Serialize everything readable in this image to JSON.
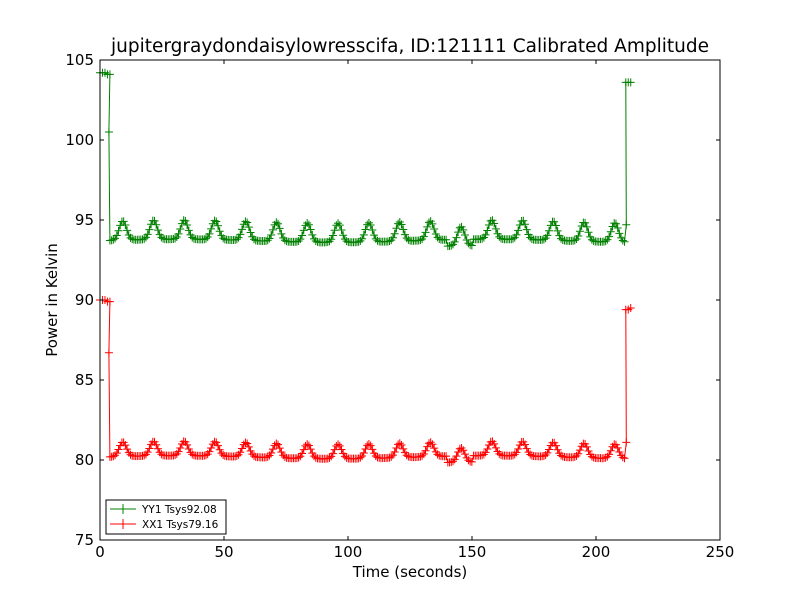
{
  "chart_data": {
    "type": "line",
    "title": "jupitergraydondaisylowresscifa, ID:121111 Calibrated Amplitude",
    "xlabel": "Time (seconds)",
    "ylabel": "Power in Kelvin",
    "xlim": [
      0,
      250
    ],
    "ylim": [
      75,
      105
    ],
    "xticks": [
      "0",
      "50",
      "100",
      "150",
      "200",
      "250"
    ],
    "yticks": [
      "75",
      "80",
      "85",
      "90",
      "95",
      "100",
      "105"
    ],
    "grid": false,
    "legend_position": "lower-left",
    "series": [
      {
        "name": "YY1 Tsys92.08",
        "color": "#008000",
        "marker": "+",
        "baseline": 94.0,
        "oscillation_amplitude": 0.6,
        "oscillation_period": 12.4,
        "start_segment": {
          "t": [
            0,
            1,
            2,
            3,
            4
          ],
          "y": [
            104.2,
            104.2,
            104.2,
            104.1,
            104.1
          ]
        },
        "drop_point": {
          "t": 3.6,
          "y": 100.5
        },
        "end_segment": {
          "t": [
            212,
            213,
            214
          ],
          "y": [
            103.6,
            103.6,
            103.6
          ]
        },
        "rise_point": {
          "t": 212.2,
          "y": 94.7
        },
        "main_range": [
          4,
          211.5
        ]
      },
      {
        "name": "XX1 Tsys79.16",
        "color": "#ff0000",
        "marker": "+",
        "baseline": 80.4,
        "oscillation_amplitude": 0.45,
        "oscillation_period": 12.4,
        "start_segment": {
          "t": [
            0,
            1,
            2,
            3,
            4
          ],
          "y": [
            90.0,
            90.0,
            90.0,
            89.9,
            89.9
          ]
        },
        "drop_point": {
          "t": 3.6,
          "y": 86.7
        },
        "end_segment": {
          "t": [
            212,
            213,
            214
          ],
          "y": [
            89.4,
            89.4,
            89.5
          ]
        },
        "rise_point": {
          "t": 212.2,
          "y": 81.1
        },
        "main_range": [
          4,
          211.5
        ]
      }
    ]
  }
}
